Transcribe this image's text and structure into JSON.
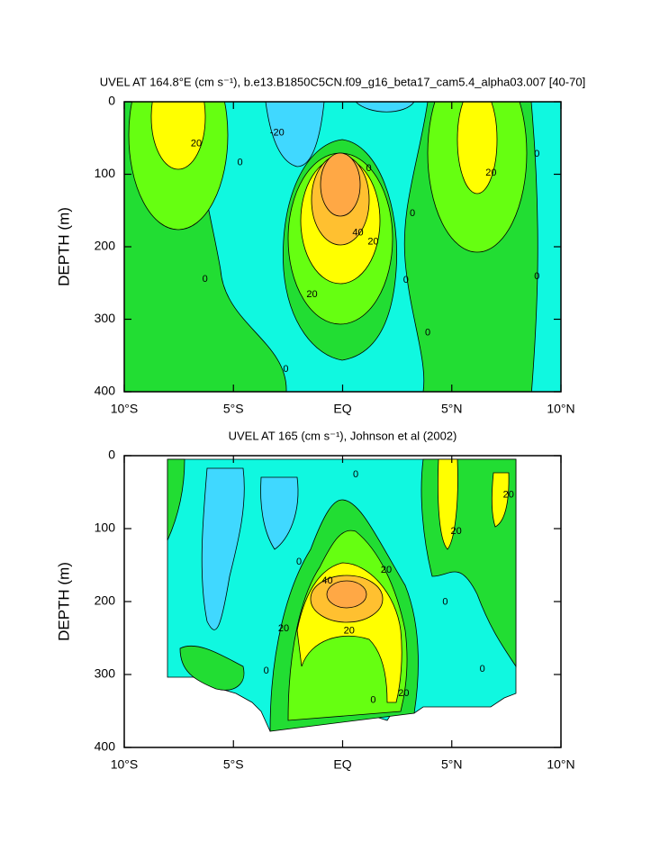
{
  "chart_data": [
    {
      "type": "contour",
      "title": "UVEL AT 164.8°E (cm s⁻¹), b.e13.B1850C5CN.f09_g16_beta17_cam5.4_alpha03.007 [40-70]",
      "ylabel": "DEPTH (m)",
      "xlim": [
        -10,
        10
      ],
      "ylim": [
        0,
        400
      ],
      "y_inverted": true,
      "xticks": [
        {
          "value": -10,
          "label": "10°S"
        },
        {
          "value": -5,
          "label": "5°S"
        },
        {
          "value": 0,
          "label": "EQ"
        },
        {
          "value": 5,
          "label": "5°N"
        },
        {
          "value": 10,
          "label": "10°N"
        }
      ],
      "yticks": [
        0,
        100,
        200,
        300,
        400
      ],
      "contour_labels": [
        {
          "x": -6.7,
          "y": 58,
          "value": 20
        },
        {
          "x": -4.7,
          "y": 84,
          "value": 0
        },
        {
          "x": -3.0,
          "y": 43,
          "value": -20
        },
        {
          "x": 1.2,
          "y": 92,
          "value": 0
        },
        {
          "x": 3.2,
          "y": 154,
          "value": 0
        },
        {
          "x": 0.7,
          "y": 181,
          "value": 40
        },
        {
          "x": 1.4,
          "y": 193,
          "value": 20
        },
        {
          "x": -6.3,
          "y": 245,
          "value": 0
        },
        {
          "x": 2.9,
          "y": 246,
          "value": 0
        },
        {
          "x": -1.4,
          "y": 266,
          "value": 20
        },
        {
          "x": 3.9,
          "y": 319,
          "value": 0
        },
        {
          "x": -2.6,
          "y": 369,
          "value": 0
        },
        {
          "x": 6.8,
          "y": 98,
          "value": 20
        },
        {
          "x": 8.9,
          "y": 72,
          "value": 0
        },
        {
          "x": 8.9,
          "y": 241,
          "value": 0
        }
      ]
    },
    {
      "type": "contour",
      "title": "UVEL AT 165 (cm s⁻¹), Johnson et al (2002)",
      "ylabel": "DEPTH (m)",
      "xlim": [
        -10,
        10
      ],
      "ylim": [
        0,
        400
      ],
      "y_inverted": true,
      "xticks": [
        {
          "value": -10,
          "label": "10°S"
        },
        {
          "value": -5,
          "label": "5°S"
        },
        {
          "value": 0,
          "label": "EQ"
        },
        {
          "value": 5,
          "label": "5°N"
        },
        {
          "value": 10,
          "label": "10°N"
        }
      ],
      "yticks": [
        0,
        100,
        200,
        300,
        400
      ],
      "contour_labels": [
        {
          "x": 0.6,
          "y": 26,
          "value": 0
        },
        {
          "x": 7.6,
          "y": 54,
          "value": 20
        },
        {
          "x": 5.2,
          "y": 104,
          "value": 20
        },
        {
          "x": -2.0,
          "y": 146,
          "value": 0
        },
        {
          "x": 2.0,
          "y": 157,
          "value": 20
        },
        {
          "x": -0.7,
          "y": 172,
          "value": 40
        },
        {
          "x": 0.3,
          "y": 240,
          "value": 20
        },
        {
          "x": -2.7,
          "y": 237,
          "value": 20
        },
        {
          "x": 4.7,
          "y": 201,
          "value": 0
        },
        {
          "x": -3.5,
          "y": 295,
          "value": 0
        },
        {
          "x": 6.4,
          "y": 293,
          "value": 0
        },
        {
          "x": 1.4,
          "y": 335,
          "value": 0
        },
        {
          "x": 2.8,
          "y": 326,
          "value": 20
        }
      ]
    }
  ]
}
